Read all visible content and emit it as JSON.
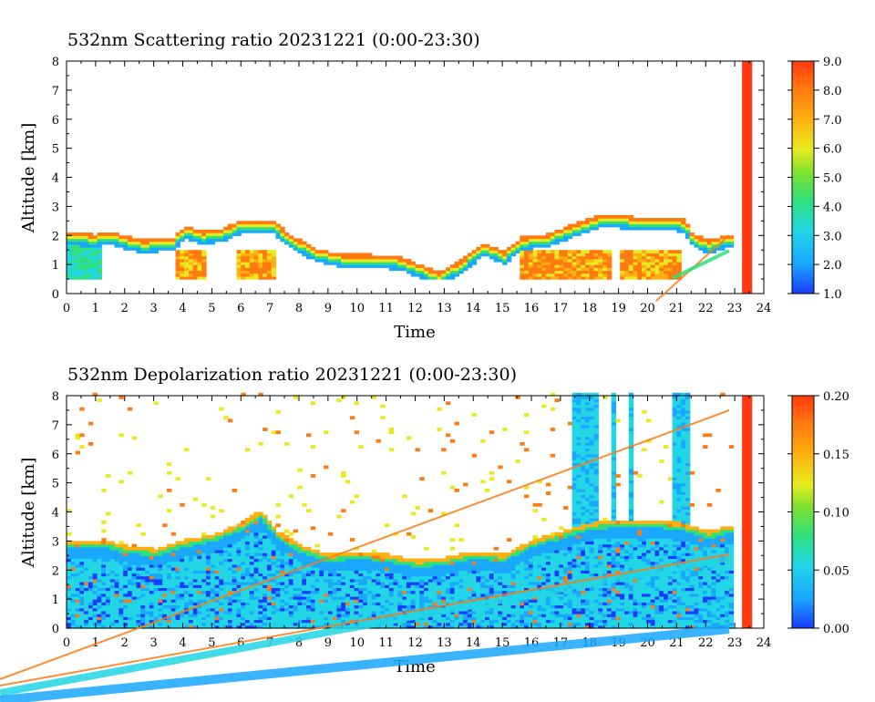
{
  "chart_data": [
    {
      "type": "heatmap",
      "title": "532nm Scattering ratio  20231221 (0:00-23:30)",
      "xlabel": "Time",
      "ylabel": "Altitude [km]",
      "xlim": [
        0,
        24
      ],
      "ylim": [
        0,
        8
      ],
      "xticks": [
        "0",
        "1",
        "2",
        "3",
        "4",
        "5",
        "6",
        "7",
        "8",
        "9",
        "10",
        "11",
        "12",
        "13",
        "14",
        "15",
        "16",
        "17",
        "18",
        "19",
        "20",
        "21",
        "22",
        "23",
        "24"
      ],
      "yticks": [
        "0",
        "1",
        "2",
        "3",
        "4",
        "5",
        "6",
        "7",
        "8"
      ],
      "colorbar": {
        "range": [
          1.0,
          9.0
        ],
        "ticks": [
          "1.0",
          "2.0",
          "3.0",
          "4.0",
          "5.0",
          "6.0",
          "7.0",
          "8.0",
          "9.0"
        ]
      },
      "colors": [
        "#1a3cff",
        "#1aa8ff",
        "#22d6e6",
        "#2fe07a",
        "#7ee030",
        "#e8ea20",
        "#ffb010",
        "#ff7a10",
        "#ff3a10"
      ],
      "saturated_column": [
        23.25,
        23.6
      ],
      "data_end_time": 22.85,
      "cloud_top_km": [
        [
          0,
          2.1
        ],
        [
          0.9,
          2.0
        ],
        [
          1.4,
          2.1
        ],
        [
          2.5,
          1.8
        ],
        [
          3.6,
          1.9
        ],
        [
          4.0,
          2.3
        ],
        [
          4.6,
          2.1
        ],
        [
          5.3,
          2.2
        ],
        [
          6.0,
          2.5
        ],
        [
          7.0,
          2.5
        ],
        [
          7.6,
          2.0
        ],
        [
          8.5,
          1.5
        ],
        [
          9.5,
          1.3
        ],
        [
          10.5,
          1.3
        ],
        [
          11.5,
          1.2
        ],
        [
          12.2,
          0.9
        ],
        [
          12.8,
          0.7
        ],
        [
          13.5,
          1.1
        ],
        [
          14.3,
          1.7
        ],
        [
          15.0,
          1.4
        ],
        [
          15.6,
          1.9
        ],
        [
          16.5,
          2.0
        ],
        [
          17.5,
          2.4
        ],
        [
          18.4,
          2.7
        ],
        [
          19.5,
          2.6
        ],
        [
          20.5,
          2.6
        ],
        [
          21.2,
          2.5
        ],
        [
          21.5,
          2.0
        ],
        [
          22.0,
          1.8
        ],
        [
          22.8,
          2.0
        ]
      ]
    },
    {
      "type": "heatmap",
      "title": "532nm Depolarization ratio  20231221 (0:00-23:30)",
      "xlabel": "Time",
      "ylabel": "Altitude [km]",
      "xlim": [
        0,
        24
      ],
      "ylim": [
        0,
        8
      ],
      "xticks": [
        "0",
        "1",
        "2",
        "3",
        "4",
        "5",
        "6",
        "7",
        "8",
        "9",
        "10",
        "11",
        "12",
        "13",
        "14",
        "15",
        "16",
        "17",
        "18",
        "19",
        "20",
        "21",
        "22",
        "23",
        "24"
      ],
      "yticks": [
        "0",
        "1",
        "2",
        "3",
        "4",
        "5",
        "6",
        "7",
        "8"
      ],
      "colorbar": {
        "range": [
          0.0,
          0.2
        ],
        "ticks": [
          "0.00",
          "0.05",
          "0.10",
          "0.15",
          "0.20"
        ]
      },
      "colors": [
        "#1a3cff",
        "#1aa8ff",
        "#22d6e6",
        "#2fe07a",
        "#7ee030",
        "#e8ea20",
        "#ffb010",
        "#ff7a10",
        "#ff3a10"
      ],
      "saturated_column": [
        23.25,
        23.6
      ],
      "data_end_time": 22.85,
      "cloud_top_km": [
        [
          0,
          3.0
        ],
        [
          1.2,
          3.0
        ],
        [
          2.0,
          2.8
        ],
        [
          3.0,
          2.7
        ],
        [
          4.0,
          3.0
        ],
        [
          5.0,
          3.2
        ],
        [
          6.0,
          3.6
        ],
        [
          6.6,
          4.0
        ],
        [
          7.2,
          3.3
        ],
        [
          8.0,
          2.8
        ],
        [
          9.0,
          2.5
        ],
        [
          10.0,
          2.6
        ],
        [
          11.0,
          2.5
        ],
        [
          12.0,
          2.3
        ],
        [
          13.0,
          2.4
        ],
        [
          14.0,
          2.6
        ],
        [
          15.0,
          2.5
        ],
        [
          16.0,
          3.0
        ],
        [
          17.0,
          3.3
        ],
        [
          18.0,
          3.6
        ],
        [
          19.0,
          3.7
        ],
        [
          20.0,
          3.7
        ],
        [
          21.0,
          3.6
        ],
        [
          22.0,
          3.3
        ],
        [
          22.8,
          3.5
        ]
      ]
    }
  ]
}
